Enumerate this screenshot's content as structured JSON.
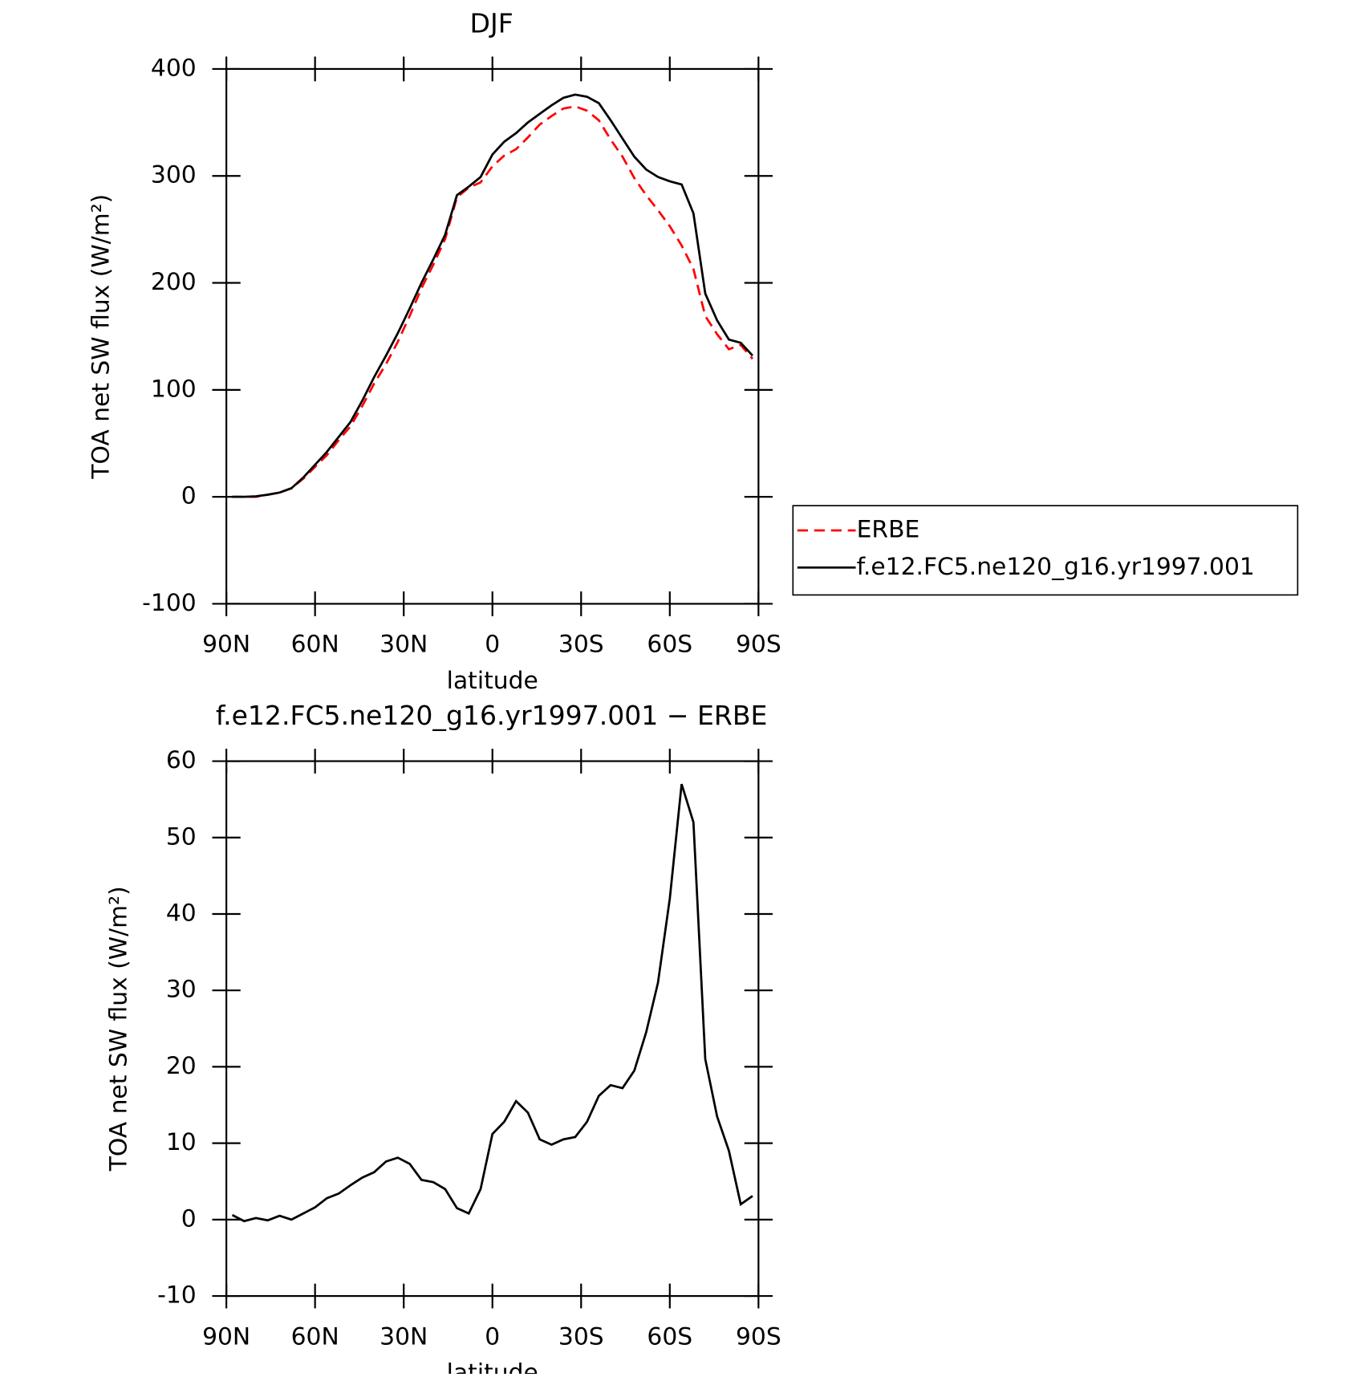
{
  "chart_data": [
    {
      "type": "line",
      "title": "DJF",
      "xlabel": "latitude",
      "ylabel": "TOA net SW flux (W/m²)",
      "x": [
        88,
        84,
        80,
        76,
        72,
        68,
        64,
        60,
        56,
        52,
        48,
        44,
        40,
        36,
        32,
        28,
        24,
        20,
        16,
        12,
        8,
        4,
        0,
        -4,
        -8,
        -12,
        -16,
        -20,
        -24,
        -28,
        -32,
        -36,
        -40,
        -44,
        -48,
        -52,
        -56,
        -60,
        -64,
        -68,
        -72,
        -76,
        -80,
        -84,
        -88
      ],
      "series": [
        {
          "name": "ERBE",
          "color": "#ff0000",
          "dash": true,
          "values": [
            0,
            0,
            0,
            2,
            4,
            8,
            17,
            28,
            39,
            53,
            66,
            85,
            106,
            124,
            145,
            169,
            195,
            217,
            241,
            280,
            289,
            294,
            309,
            319,
            325,
            336,
            348,
            356,
            363,
            365,
            361,
            352,
            334,
            318,
            298,
            282,
            268,
            253,
            235,
            213,
            169,
            152,
            138,
            142,
            129
          ]
        },
        {
          "name": "f.e12.FC5.ne120_g16.yr1997.001",
          "color": "#000000",
          "dash": false,
          "values": [
            0,
            0,
            0.5,
            2,
            4,
            8,
            18,
            30,
            42,
            56,
            70,
            90,
            112,
            132,
            153,
            176,
            200,
            222,
            245,
            282,
            290,
            299,
            320,
            332,
            340,
            350,
            358,
            366,
            373,
            376,
            374,
            368,
            352,
            335,
            318,
            306,
            299,
            295,
            292,
            265,
            190,
            165,
            147,
            144,
            132
          ]
        }
      ],
      "xlim": [
        90,
        -90
      ],
      "xticks": [
        {
          "value": 90,
          "label": "90N"
        },
        {
          "value": 60,
          "label": "60N"
        },
        {
          "value": 30,
          "label": "30N"
        },
        0,
        {
          "value": -30,
          "label": "30S"
        },
        {
          "value": -60,
          "label": "60S"
        },
        {
          "value": -90,
          "label": "90S"
        }
      ],
      "ylim": [
        -100,
        400
      ],
      "yticks": [
        -100,
        0,
        100,
        200,
        300,
        400
      ],
      "legend": "right"
    },
    {
      "type": "line",
      "title": "f.e12.FC5.ne120_g16.yr1997.001 − ERBE",
      "xlabel": "latitude",
      "ylabel": "TOA net SW flux (W/m²)",
      "x": [
        88,
        84,
        80,
        76,
        72,
        68,
        64,
        60,
        56,
        52,
        48,
        44,
        40,
        36,
        32,
        28,
        24,
        20,
        16,
        12,
        8,
        4,
        0,
        -4,
        -8,
        -12,
        -16,
        -20,
        -24,
        -28,
        -32,
        -36,
        -40,
        -44,
        -48,
        -52,
        -56,
        -60,
        -64,
        -68,
        -72,
        -76,
        -80,
        -84,
        -88
      ],
      "series": [
        {
          "color": "#000000",
          "dash": false,
          "values": [
            0.6,
            -0.2,
            0.2,
            -0.1,
            0.5,
            0,
            0.8,
            1.6,
            2.8,
            3.4,
            4.5,
            5.5,
            6.2,
            7.6,
            8.1,
            7.3,
            5.2,
            4.9,
            4,
            1.5,
            0.8,
            4,
            11.2,
            12.8,
            15.5,
            14,
            10.5,
            9.8,
            10.5,
            10.8,
            12.8,
            16.2,
            17.6,
            17.2,
            19.5,
            24.5,
            31,
            42,
            57,
            52,
            21,
            13.5,
            9,
            2,
            3.1
          ]
        }
      ],
      "xlim": [
        90,
        -90
      ],
      "xticks": [
        {
          "value": 90,
          "label": "90N"
        },
        {
          "value": 60,
          "label": "60N"
        },
        {
          "value": 30,
          "label": "30N"
        },
        0,
        {
          "value": -30,
          "label": "30S"
        },
        {
          "value": -60,
          "label": "60S"
        },
        {
          "value": -90,
          "label": "90S"
        }
      ],
      "ylim": [
        -10,
        60
      ],
      "yticks": [
        -10,
        0,
        10,
        20,
        30,
        40,
        50,
        60
      ]
    }
  ]
}
